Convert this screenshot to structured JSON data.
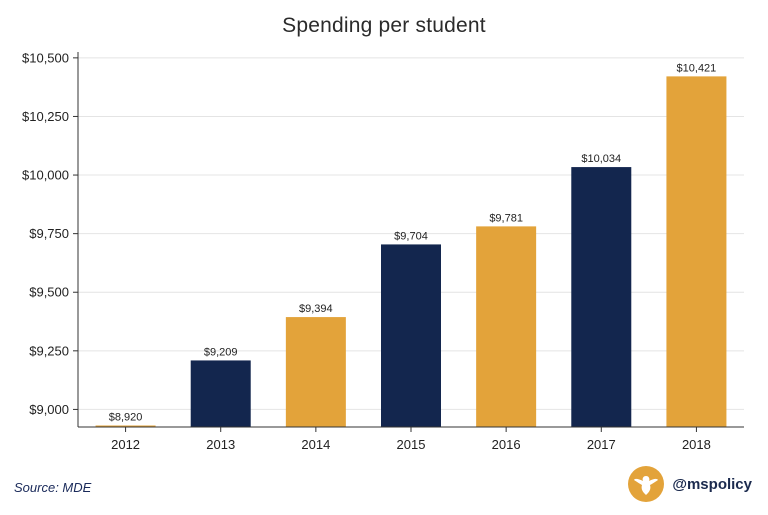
{
  "colors": {
    "navy": "#13264e",
    "gold": "#e3a33a",
    "grid": "#e4e4e4",
    "axis": "#333333"
  },
  "footer": {
    "source": "Source: MDE",
    "handle": "@mspolicy",
    "logo_icon": "eagle-logo-icon"
  },
  "chart_data": {
    "type": "bar",
    "title": "Spending per student",
    "xlabel": "",
    "ylabel": "",
    "categories": [
      "2012",
      "2013",
      "2014",
      "2015",
      "2016",
      "2017",
      "2018"
    ],
    "values": [
      8920,
      9209,
      9394,
      9704,
      9781,
      10034,
      10421
    ],
    "value_labels": [
      "$8,920",
      "$9,209",
      "$9,394",
      "$9,704",
      "$9,781",
      "$10,034",
      "$10,421"
    ],
    "bar_colors": [
      "#e3a33a",
      "#13264e",
      "#e3a33a",
      "#13264e",
      "#e3a33a",
      "#13264e",
      "#e3a33a"
    ],
    "ylim": [
      8925,
      10525
    ],
    "yticks": [
      9000,
      9250,
      9500,
      9750,
      10000,
      10250,
      10500
    ],
    "ytick_labels": [
      "$9,000",
      "$9,250",
      "$9,500",
      "$9,750",
      "$10,000",
      "$10,250",
      "$10,500"
    ],
    "grid": true,
    "legend": "none"
  }
}
